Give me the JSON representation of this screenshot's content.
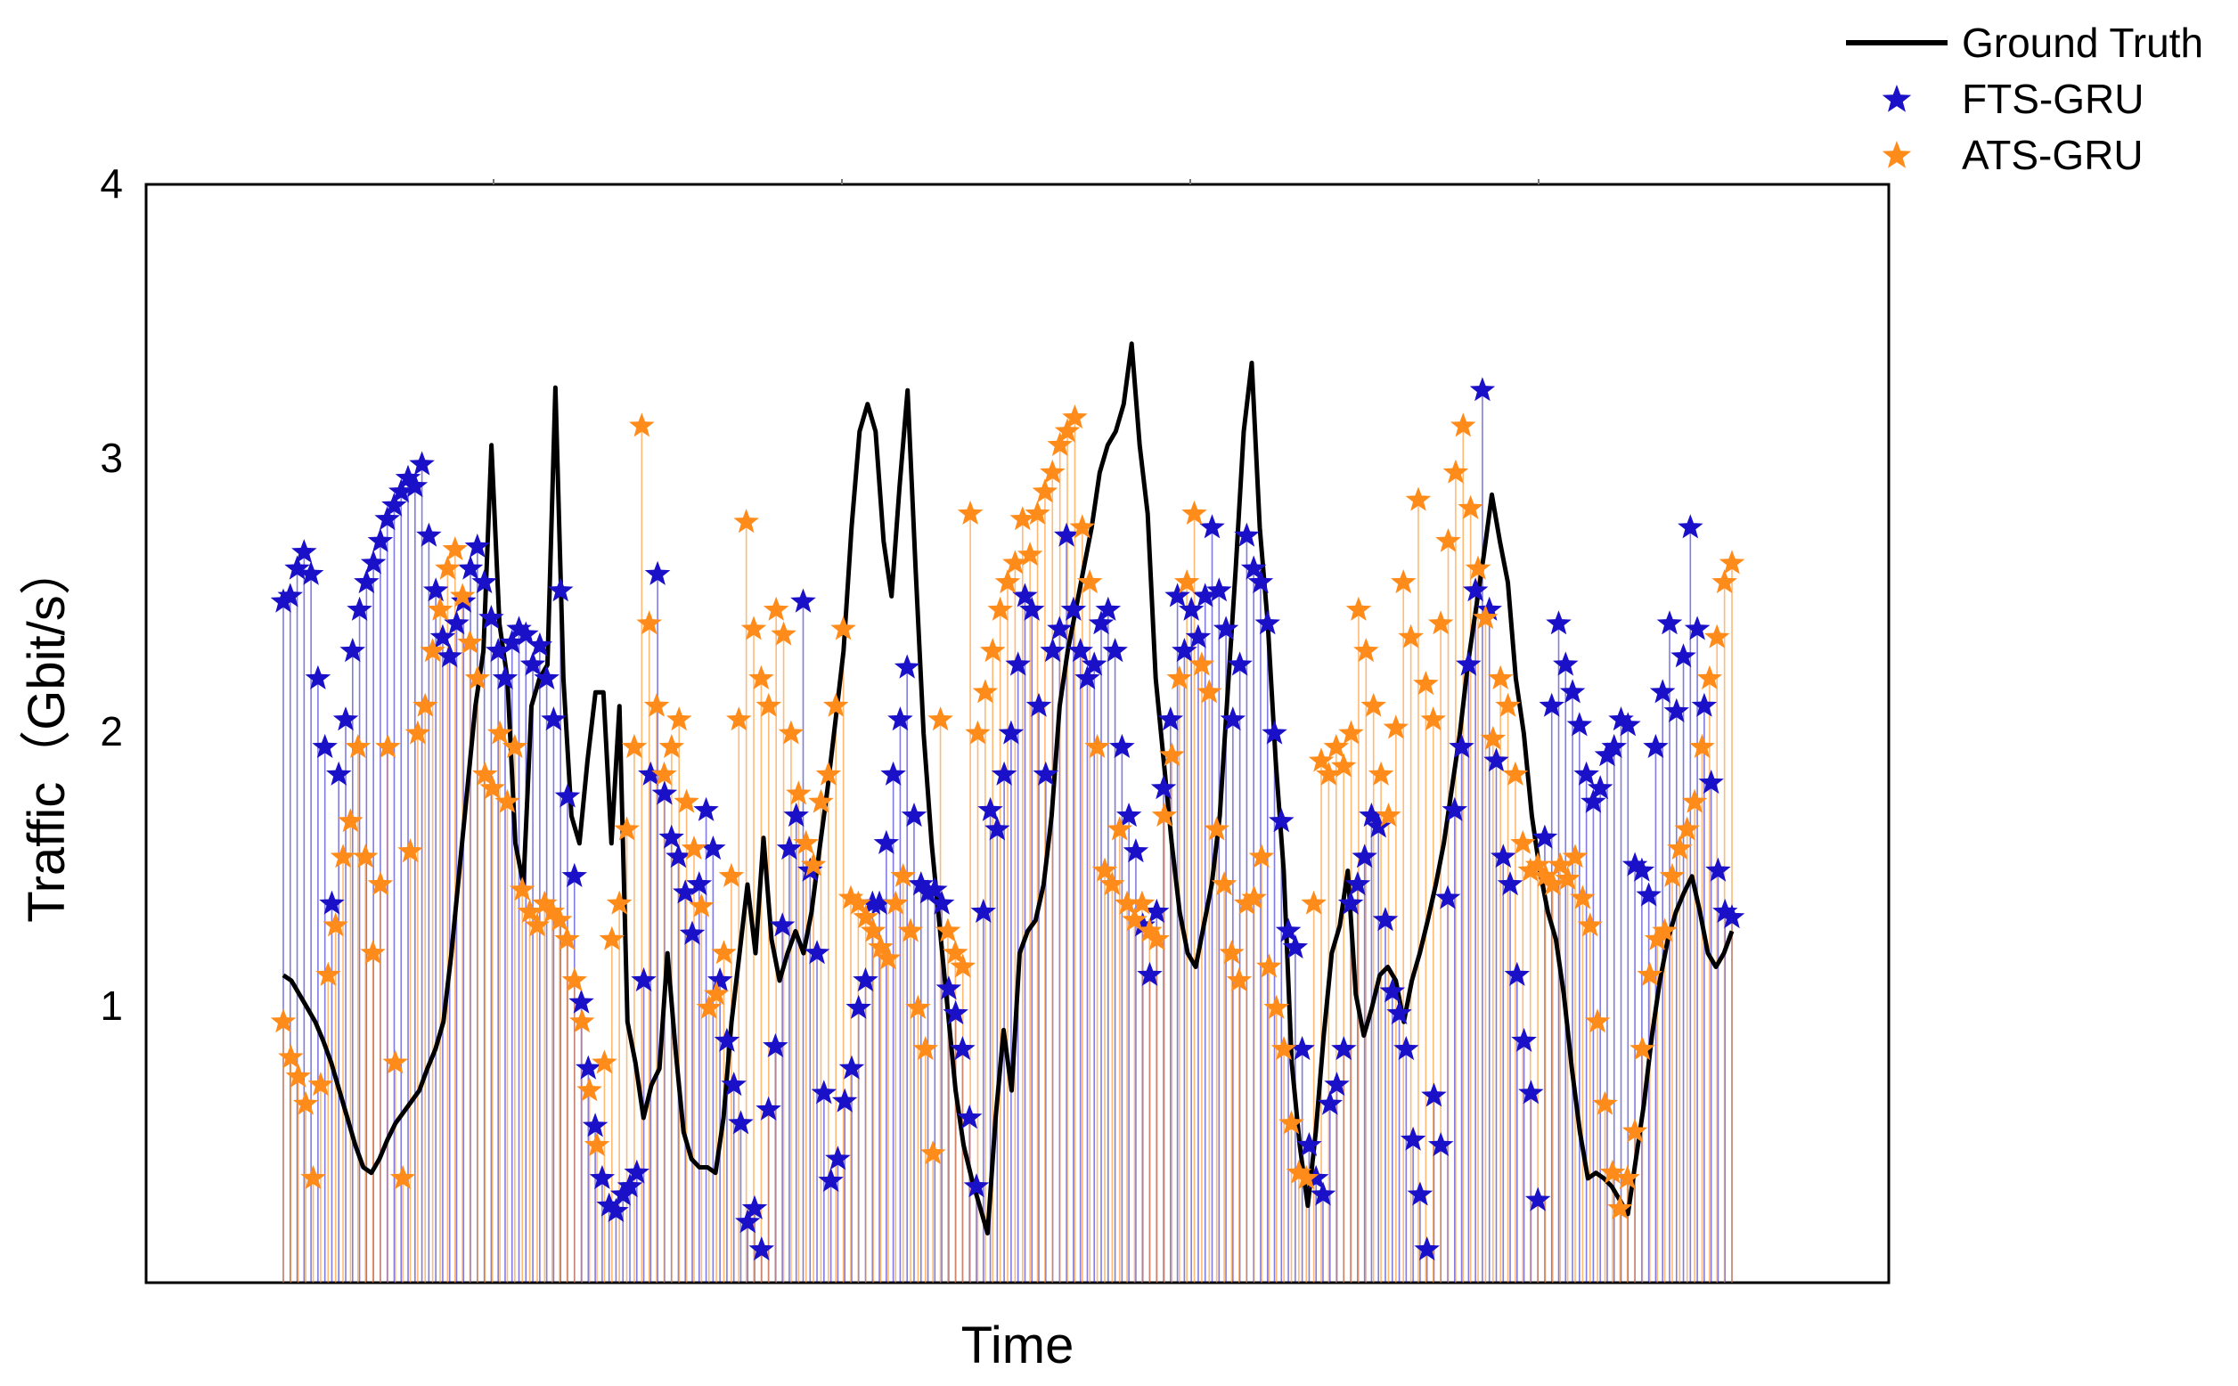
{
  "chart_data": {
    "type": "line",
    "title": "",
    "xlabel": "Time",
    "ylabel": "Traffic（Gbit/s）",
    "ylim": [
      0,
      4
    ],
    "yticks": [
      "1",
      "2",
      "3",
      "4"
    ],
    "legend_position": "top-right",
    "colors": {
      "ground_truth": "#000000",
      "fts": "#1a10c8",
      "ats": "#ff8c1a"
    },
    "legend": [
      {
        "name": "Ground Truth",
        "marker": "line",
        "color": "#000000"
      },
      {
        "name": "FTS-GRU",
        "marker": "star",
        "color": "#1a10c8"
      },
      {
        "name": "ATS-GRU",
        "marker": "star",
        "color": "#ff8c1a"
      }
    ],
    "series": [
      {
        "name": "Ground Truth",
        "style": "line",
        "values": [
          1.12,
          1.1,
          1.05,
          1.0,
          0.95,
          0.88,
          0.8,
          0.7,
          0.6,
          0.5,
          0.42,
          0.4,
          0.45,
          0.52,
          0.58,
          0.62,
          0.66,
          0.7,
          0.78,
          0.85,
          0.95,
          1.2,
          1.5,
          1.8,
          2.1,
          2.3,
          3.05,
          2.4,
          2.2,
          1.6,
          1.45,
          2.1,
          2.2,
          2.25,
          3.26,
          2.2,
          1.7,
          1.6,
          1.9,
          2.15,
          2.15,
          1.6,
          2.1,
          0.95,
          0.8,
          0.6,
          0.72,
          0.78,
          1.2,
          0.85,
          0.55,
          0.45,
          0.42,
          0.42,
          0.4,
          0.6,
          0.95,
          1.2,
          1.45,
          1.2,
          1.62,
          1.25,
          1.1,
          1.2,
          1.28,
          1.2,
          1.35,
          1.58,
          1.8,
          2.05,
          2.3,
          2.75,
          3.1,
          3.2,
          3.1,
          2.7,
          2.5,
          2.9,
          3.25,
          2.6,
          2.0,
          1.6,
          1.3,
          1.0,
          0.7,
          0.5,
          0.38,
          0.28,
          0.18,
          0.6,
          0.92,
          0.7,
          1.2,
          1.28,
          1.32,
          1.45,
          1.7,
          2.1,
          2.3,
          2.45,
          2.6,
          2.75,
          2.95,
          3.05,
          3.1,
          3.2,
          3.42,
          3.05,
          2.8,
          2.2,
          1.9,
          1.6,
          1.35,
          1.2,
          1.15,
          1.3,
          1.45,
          1.7,
          2.15,
          2.6,
          3.1,
          3.35,
          2.75,
          2.4,
          1.9,
          1.5,
          0.8,
          0.5,
          0.28,
          0.55,
          0.9,
          1.2,
          1.3,
          1.5,
          1.05,
          0.9,
          1.0,
          1.12,
          1.15,
          1.1,
          0.95,
          1.1,
          1.2,
          1.32,
          1.45,
          1.6,
          1.8,
          2.0,
          2.25,
          2.45,
          2.65,
          2.87,
          2.7,
          2.55,
          2.2,
          2.0,
          1.7,
          1.5,
          1.35,
          1.25,
          1.05,
          0.78,
          0.55,
          0.38,
          0.4,
          0.38,
          0.35,
          0.3,
          0.25,
          0.45,
          0.65,
          0.9,
          1.1,
          1.25,
          1.35,
          1.42,
          1.48,
          1.35,
          1.2,
          1.15,
          1.2,
          1.28
        ]
      },
      {
        "name": "FTS-GRU",
        "style": "stars",
        "values": [
          2.48,
          2.5,
          2.6,
          2.66,
          2.58,
          2.2,
          1.95,
          1.38,
          1.85,
          2.05,
          2.3,
          2.45,
          2.55,
          2.62,
          2.7,
          2.78,
          2.83,
          2.88,
          2.93,
          2.9,
          2.98,
          2.72,
          2.52,
          2.35,
          2.28,
          2.4,
          2.48,
          2.6,
          2.68,
          2.55,
          2.42,
          2.3,
          2.2,
          2.33,
          2.38,
          2.36,
          2.25,
          2.32,
          2.2,
          2.05,
          2.52,
          1.77,
          1.48,
          1.02,
          0.78,
          0.57,
          0.38,
          0.28,
          0.26,
          0.32,
          0.35,
          0.4,
          1.1,
          1.85,
          2.58,
          1.78,
          1.62,
          1.55,
          1.42,
          1.27,
          1.45,
          1.72,
          1.58,
          1.1,
          0.88,
          0.72,
          0.58,
          0.22,
          0.27,
          0.12,
          0.63,
          0.86,
          1.3,
          1.58,
          1.7,
          2.48,
          1.5,
          1.2,
          0.69,
          0.37,
          0.45,
          0.66,
          0.78,
          1.0,
          1.1,
          1.38,
          1.38,
          1.6,
          1.85,
          2.05,
          2.24,
          1.7,
          1.45,
          1.42,
          1.43,
          1.38,
          1.07,
          0.98,
          0.85,
          0.6,
          0.35,
          1.35,
          1.72,
          1.65,
          1.85,
          2.0,
          2.25,
          2.5,
          2.45,
          2.1,
          1.85,
          2.3,
          2.38,
          2.72,
          2.45,
          2.3,
          2.2,
          2.25,
          2.4,
          2.45,
          2.3,
          1.95,
          1.7,
          1.57,
          1.3,
          1.12,
          1.35,
          1.8,
          2.05,
          2.5,
          2.3,
          2.45,
          2.35,
          2.5,
          2.75,
          2.52,
          2.38,
          2.05,
          2.25,
          2.72,
          2.6,
          2.55,
          2.4,
          2.0,
          1.68,
          1.28,
          1.22,
          0.85,
          0.5,
          0.38,
          0.32,
          0.65,
          0.72,
          0.85,
          1.38,
          1.45,
          1.55,
          1.7,
          1.66,
          1.32,
          1.06,
          0.98,
          0.85,
          0.52,
          0.32,
          0.12,
          0.68,
          0.5,
          1.4,
          1.72,
          1.95,
          2.25,
          2.52,
          3.25,
          2.45,
          1.9,
          1.55,
          1.45,
          1.12,
          0.88,
          0.69,
          0.3,
          1.62,
          2.1,
          2.4,
          2.25,
          2.15,
          2.03,
          1.85,
          1.75,
          1.8,
          1.92,
          1.95,
          2.05,
          2.03,
          1.52,
          1.5,
          1.41,
          1.95,
          2.15,
          2.4,
          2.08,
          2.28,
          2.75,
          2.38,
          2.1,
          1.82,
          1.5,
          1.35,
          1.33
        ]
      },
      {
        "name": "ATS-GRU",
        "style": "stars",
        "values": [
          0.95,
          0.82,
          0.75,
          0.65,
          0.38,
          0.72,
          1.12,
          1.3,
          1.55,
          1.68,
          1.95,
          1.55,
          1.2,
          1.45,
          1.95,
          0.8,
          0.38,
          1.57,
          2.0,
          2.1,
          2.3,
          2.45,
          2.6,
          2.67,
          2.5,
          2.33,
          2.2,
          1.85,
          1.8,
          2.0,
          1.75,
          1.95,
          1.43,
          1.35,
          1.3,
          1.38,
          1.35,
          1.32,
          1.25,
          1.1,
          0.95,
          0.7,
          0.5,
          0.8,
          1.25,
          1.38,
          1.65,
          1.95,
          3.12,
          2.4,
          2.1,
          1.85,
          1.95,
          2.05,
          1.75,
          1.58,
          1.37,
          1.0,
          1.05,
          1.2,
          1.48,
          2.05,
          2.77,
          2.38,
          2.2,
          2.1,
          2.45,
          2.36,
          2.0,
          1.78,
          1.6,
          1.52,
          1.75,
          1.85,
          2.1,
          2.38,
          1.4,
          1.38,
          1.33,
          1.28,
          1.22,
          1.18,
          1.38,
          1.48,
          1.28,
          1.0,
          0.85,
          0.47,
          2.05,
          1.28,
          1.2,
          1.15,
          2.8,
          2.0,
          2.15,
          2.3,
          2.45,
          2.55,
          2.62,
          2.78,
          2.65,
          2.8,
          2.88,
          2.95,
          3.05,
          3.1,
          3.15,
          2.75,
          2.55,
          1.95,
          1.5,
          1.45,
          1.65,
          1.38,
          1.32,
          1.38,
          1.28,
          1.25,
          1.7,
          1.92,
          2.2,
          2.55,
          2.8,
          2.25,
          2.15,
          1.65,
          1.45,
          1.2,
          1.1,
          1.38,
          1.4,
          1.55,
          1.15,
          1.0,
          0.85,
          0.58,
          0.4,
          0.38,
          1.38,
          1.9,
          1.85,
          1.95,
          1.88,
          2.0,
          2.45,
          2.3,
          2.1,
          1.85,
          1.7,
          2.02,
          2.55,
          2.35,
          2.85,
          2.18,
          2.05,
          2.4,
          2.7,
          2.95,
          3.12,
          2.82,
          2.6,
          2.42,
          1.98,
          2.2,
          2.1,
          1.85,
          1.6,
          1.5,
          1.52,
          1.48,
          1.45,
          1.52,
          1.47,
          1.55,
          1.4,
          1.3,
          0.95,
          0.65,
          0.4,
          0.27,
          0.38,
          0.55,
          0.85,
          1.12,
          1.25,
          1.28,
          1.48,
          1.58,
          1.65,
          1.75,
          1.95,
          2.2,
          2.35,
          2.55,
          2.62
        ]
      }
    ]
  }
}
